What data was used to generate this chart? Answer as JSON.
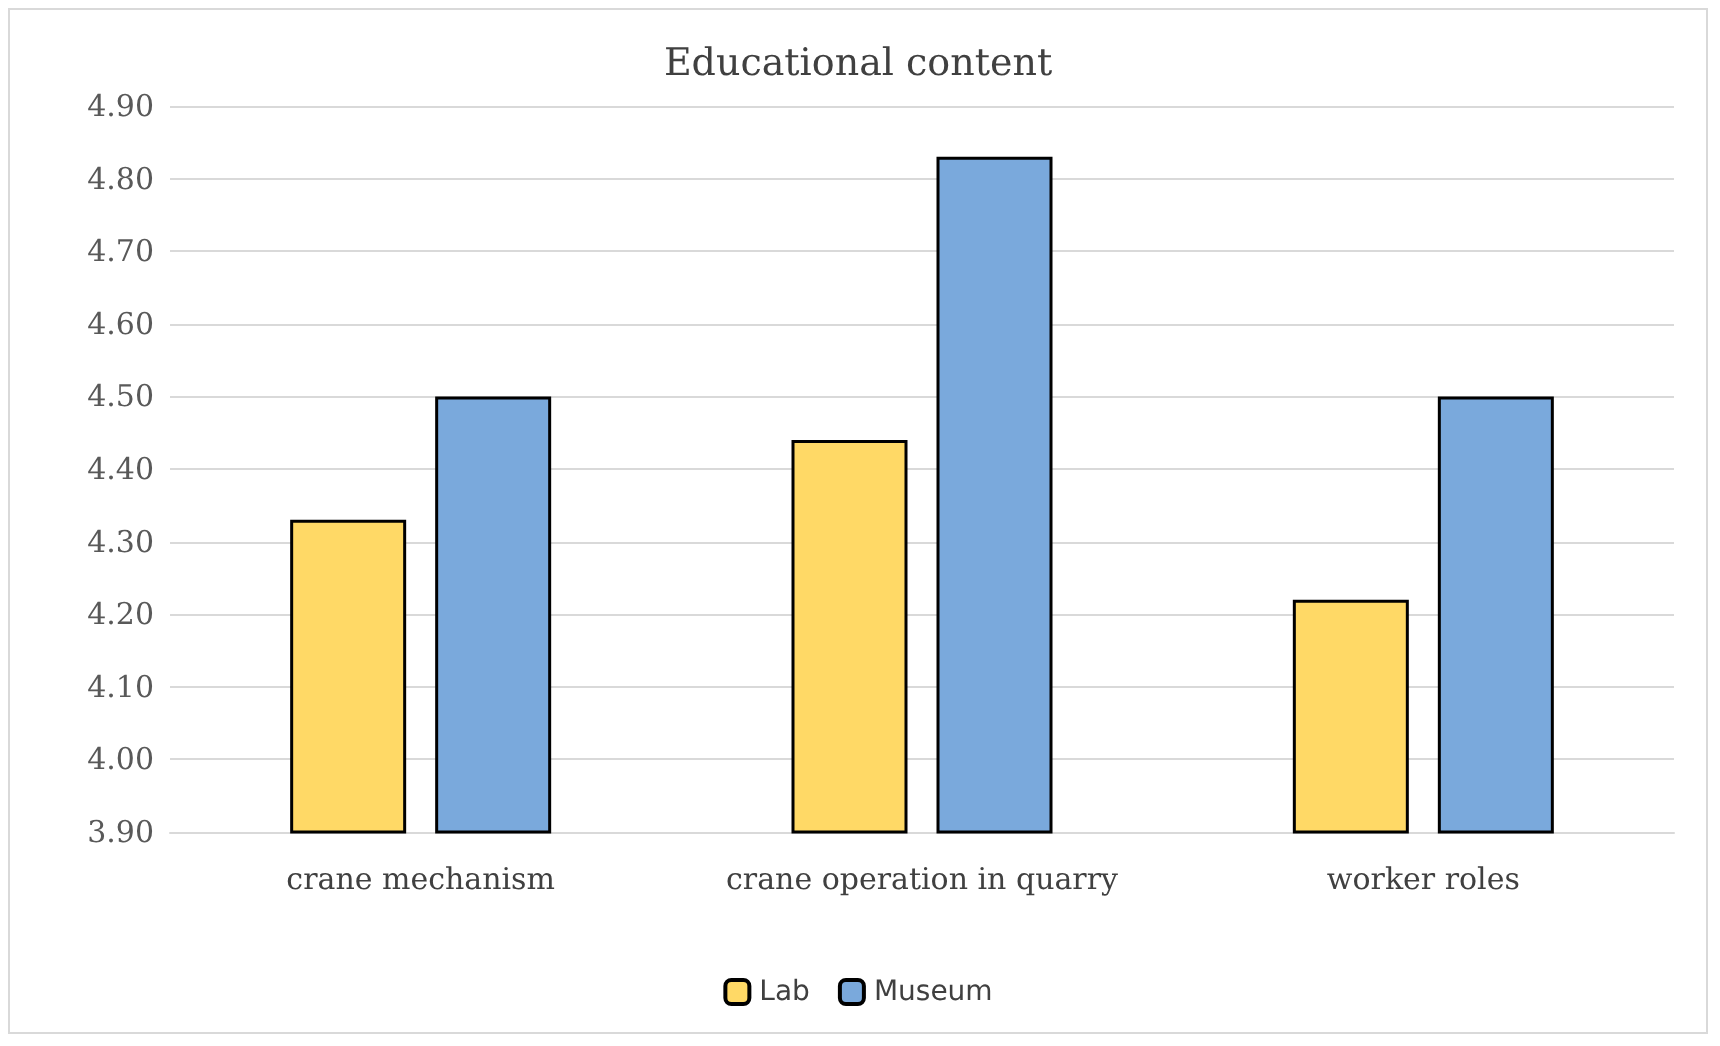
{
  "chart_data": {
    "type": "bar",
    "title": "Educational content",
    "categories": [
      "crane mechanism",
      "crane operation in quarry",
      "worker roles"
    ],
    "series": [
      {
        "name": "Lab",
        "color": "#ffd966",
        "values": [
          4.33,
          4.44,
          4.22
        ]
      },
      {
        "name": "Museum",
        "color": "#7aa9dc",
        "values": [
          4.5,
          4.83,
          4.5
        ]
      }
    ],
    "ylim": [
      3.9,
      4.9
    ],
    "yticks": [
      {
        "value": 3.9,
        "label": "3.90"
      },
      {
        "value": 4.0,
        "label": "4.00"
      },
      {
        "value": 4.1,
        "label": "4.10"
      },
      {
        "value": 4.2,
        "label": "4.20"
      },
      {
        "value": 4.3,
        "label": "4.30"
      },
      {
        "value": 4.4,
        "label": "4.40"
      },
      {
        "value": 4.5,
        "label": "4.50"
      },
      {
        "value": 4.6,
        "label": "4.60"
      },
      {
        "value": 4.7,
        "label": "4.70"
      },
      {
        "value": 4.8,
        "label": "4.80"
      },
      {
        "value": 4.9,
        "label": "4.90"
      }
    ],
    "grid": "y",
    "legend": "bottom"
  }
}
